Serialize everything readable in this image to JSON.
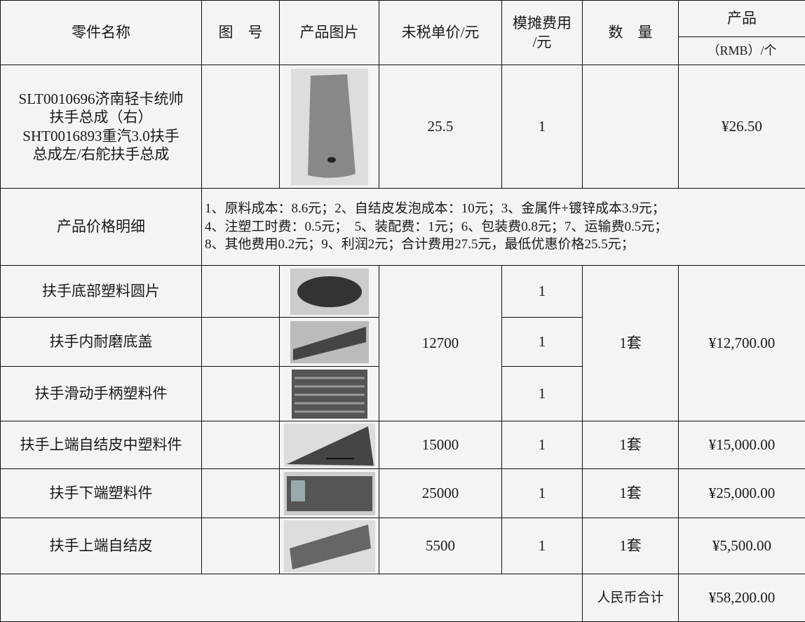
{
  "table": {
    "header": {
      "part_name": "零件名称",
      "drawing_no": "图　号",
      "image": "产品图片",
      "unit_price": "未税单价/元",
      "mold_fee": [
        "模摊费用",
        "/元"
      ],
      "quantity": "数　量",
      "product": "产品",
      "product_unit": "（RMB）/个"
    },
    "main_item": {
      "name": [
        "SLT0010696济南轻卡统帅",
        "扶手总成（右）",
        "SHT0016893重汽3.0扶手",
        "总成左/右舵扶手总成"
      ],
      "unit_price": "25.5",
      "mold_fee": "1",
      "product": "¥26.50"
    },
    "price_detail": {
      "label": "产品价格明细",
      "lines": [
        "1、原料成本：8.6元；2、自结皮发泡成本：10元；3、金属件+镀锌成本3.9元；",
        "4、注塑工时费：0.5元；　5、装配费：1元；6、包装费0.8元；7、运输费0.5元；",
        "8、其他费用0.2元；9、利润2元；合计费用27.5元，最低优惠价格25.5元；"
      ]
    },
    "mold_group": {
      "names": [
        "扶手底部塑料圆片",
        "扶手内耐磨底盖",
        "扶手滑动手柄塑料件"
      ],
      "mold_fees": [
        "1",
        "1",
        "1"
      ],
      "unit_price": "12700",
      "quantity": "1套",
      "product": "¥12,700.00"
    },
    "molds": [
      {
        "name": "扶手上端自结皮中塑料件",
        "unit_price": "15000",
        "mold_fee": "1",
        "quantity": "1套",
        "product": "¥15,000.00"
      },
      {
        "name": "扶手下端塑料件",
        "unit_price": "25000",
        "mold_fee": "1",
        "quantity": "1套",
        "product": "¥25,000.00"
      },
      {
        "name": "扶手上端自结皮",
        "unit_price": "5500",
        "mold_fee": "1",
        "quantity": "1套",
        "product": "¥5,500.00"
      }
    ],
    "total": {
      "label": "人民币合计",
      "value": "¥58,200.00"
    }
  }
}
